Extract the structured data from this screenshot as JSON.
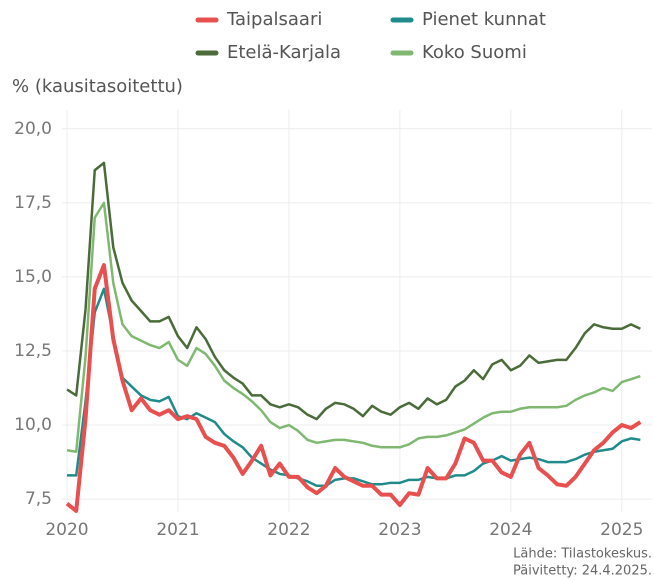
{
  "chart_data": {
    "type": "line",
    "y_label": "% (kausitasoitettu)",
    "source": "Lähde: Tilastokeskus.",
    "updated": "Päivitetty: 24.4.2025.",
    "x": [
      2020,
      2020.083,
      2020.167,
      2020.25,
      2020.333,
      2020.417,
      2020.5,
      2020.583,
      2020.667,
      2020.75,
      2020.833,
      2020.917,
      2021,
      2021.083,
      2021.167,
      2021.25,
      2021.333,
      2021.417,
      2021.5,
      2021.583,
      2021.667,
      2021.75,
      2021.833,
      2021.917,
      2022,
      2022.083,
      2022.167,
      2022.25,
      2022.333,
      2022.417,
      2022.5,
      2022.583,
      2022.667,
      2022.75,
      2022.833,
      2022.917,
      2023,
      2023.083,
      2023.167,
      2023.25,
      2023.333,
      2023.417,
      2023.5,
      2023.583,
      2023.667,
      2023.75,
      2023.833,
      2023.917,
      2024,
      2024.083,
      2024.167,
      2024.25,
      2024.333,
      2024.417,
      2024.5,
      2024.583,
      2024.667,
      2024.75,
      2024.833,
      2024.917,
      2025,
      2025.083,
      2025.167
    ],
    "series": [
      {
        "name": "Etelä-Karjala",
        "color": "#4b6b3a",
        "values": [
          11.2,
          11.0,
          13.9,
          18.6,
          18.85,
          16.0,
          14.8,
          14.2,
          13.85,
          13.5,
          13.5,
          13.65,
          13.0,
          12.6,
          13.3,
          12.9,
          12.3,
          11.85,
          11.6,
          11.4,
          11.0,
          11.0,
          10.7,
          10.6,
          10.7,
          10.6,
          10.35,
          10.2,
          10.55,
          10.75,
          10.7,
          10.55,
          10.3,
          10.65,
          10.45,
          10.35,
          10.6,
          10.75,
          10.55,
          10.9,
          10.7,
          10.85,
          11.3,
          11.5,
          11.85,
          11.55,
          12.05,
          12.2,
          11.85,
          12.0,
          12.35,
          12.1,
          12.15,
          12.2,
          12.2,
          12.6,
          13.1,
          13.4,
          13.3,
          13.25,
          13.25,
          13.4,
          13.25
        ]
      },
      {
        "name": "Koko Suomi",
        "color": "#80b872",
        "values": [
          9.15,
          9.1,
          12.3,
          17.0,
          17.5,
          14.8,
          13.4,
          13.0,
          12.85,
          12.7,
          12.6,
          12.8,
          12.2,
          12.0,
          12.6,
          12.4,
          12.0,
          11.5,
          11.25,
          11.05,
          10.8,
          10.5,
          10.1,
          9.9,
          10.0,
          9.8,
          9.5,
          9.4,
          9.45,
          9.5,
          9.5,
          9.45,
          9.4,
          9.3,
          9.25,
          9.25,
          9.25,
          9.35,
          9.55,
          9.6,
          9.6,
          9.65,
          9.75,
          9.85,
          10.05,
          10.25,
          10.4,
          10.45,
          10.45,
          10.55,
          10.6,
          10.6,
          10.6,
          10.6,
          10.65,
          10.85,
          11.0,
          11.1,
          11.25,
          11.15,
          11.45,
          11.55,
          11.65
        ]
      },
      {
        "name": "Pienet kunnat",
        "color": "#1f8b8b",
        "values": [
          8.3,
          8.3,
          10.8,
          13.8,
          14.6,
          13.0,
          11.6,
          11.3,
          11.0,
          10.85,
          10.8,
          10.95,
          10.3,
          10.2,
          10.4,
          10.25,
          10.1,
          9.7,
          9.45,
          9.25,
          8.9,
          8.7,
          8.5,
          8.35,
          8.3,
          8.2,
          8.1,
          7.95,
          7.95,
          8.15,
          8.2,
          8.2,
          8.1,
          8.0,
          8.0,
          8.05,
          8.05,
          8.15,
          8.15,
          8.25,
          8.2,
          8.2,
          8.3,
          8.3,
          8.45,
          8.7,
          8.8,
          8.95,
          8.8,
          8.85,
          8.9,
          8.85,
          8.75,
          8.75,
          8.75,
          8.85,
          9.0,
          9.1,
          9.15,
          9.2,
          9.45,
          9.55,
          9.5
        ]
      },
      {
        "name": "Taipalsaari",
        "color": "#e8504f",
        "values": [
          7.35,
          7.1,
          10.2,
          14.6,
          15.4,
          12.9,
          11.5,
          10.5,
          10.9,
          10.5,
          10.35,
          10.5,
          10.2,
          10.3,
          10.2,
          9.6,
          9.4,
          9.3,
          8.9,
          8.35,
          8.8,
          9.3,
          8.3,
          8.7,
          8.25,
          8.25,
          7.9,
          7.7,
          7.95,
          8.55,
          8.25,
          8.1,
          7.95,
          7.95,
          7.65,
          7.65,
          7.3,
          7.7,
          7.65,
          8.55,
          8.2,
          8.2,
          8.7,
          9.55,
          9.4,
          8.8,
          8.8,
          8.4,
          8.25,
          9.0,
          9.4,
          8.55,
          8.3,
          8.0,
          7.95,
          8.25,
          8.7,
          9.15,
          9.4,
          9.75,
          10.0,
          9.9,
          10.1
        ]
      }
    ],
    "xlim": [
      2020,
      2025.2
    ],
    "xticks": [
      2020,
      2021,
      2022,
      2023,
      2024,
      2025
    ],
    "ylim": [
      7.2,
      20.5
    ],
    "yticks": [
      {
        "value": 7.5,
        "label": "7,5"
      },
      {
        "value": 10,
        "label": "10,0"
      },
      {
        "value": 12.5,
        "label": "12,5"
      },
      {
        "value": 15,
        "label": "15,0"
      },
      {
        "value": 17.5,
        "label": "17,5"
      },
      {
        "value": 20,
        "label": "20,0"
      }
    ],
    "grid": true
  }
}
